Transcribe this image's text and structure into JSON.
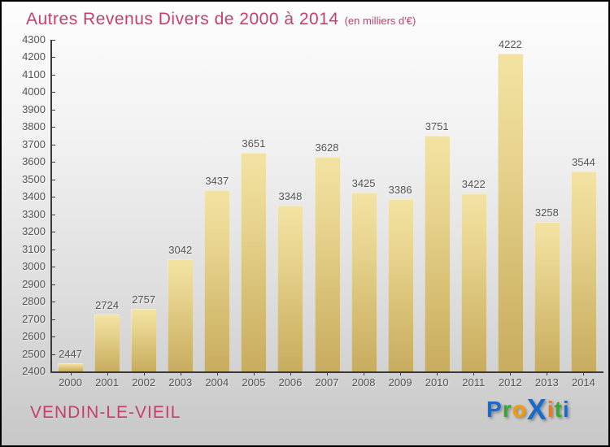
{
  "header": {
    "title": "Autres Revenus Divers de 2000 à 2014",
    "subtitle": "(en milliers d'€)"
  },
  "footer": {
    "city": "VENDIN-LE-VIEIL"
  },
  "logo": {
    "name": "Proxiti",
    "letters": [
      {
        "ch": "P",
        "color": "#1b6ac9"
      },
      {
        "ch": "r",
        "color": "#3aa535"
      },
      {
        "ch": "o",
        "color": "#f59c00"
      },
      {
        "ch": "X",
        "color": "#1b6ac9",
        "big": true
      },
      {
        "ch": "i",
        "color": "#f07818"
      },
      {
        "ch": "t",
        "color": "#3aa535"
      },
      {
        "ch": "i",
        "color": "#1b6ac9"
      }
    ]
  },
  "colors": {
    "accent_pink": "#c43e6e",
    "bar_gradient_top": "#f3e3a3",
    "bar_gradient_bottom": "#c8ac60",
    "label_gray": "#555555",
    "axis": "#3a3a3a"
  },
  "chart_data": {
    "type": "bar",
    "title": "Autres Revenus Divers de 2000 à 2014 (en milliers d'€)",
    "xlabel": "",
    "ylabel": "",
    "categories": [
      "2000",
      "2001",
      "2002",
      "2003",
      "2004",
      "2005",
      "2006",
      "2007",
      "2008",
      "2009",
      "2010",
      "2011",
      "2012",
      "2013",
      "2014"
    ],
    "values": [
      2447,
      2724,
      2757,
      3042,
      3437,
      3651,
      3348,
      3628,
      3425,
      3386,
      3751,
      3422,
      4222,
      3258,
      3544
    ],
    "ylim": [
      2400,
      4300
    ],
    "ytick_step": 100,
    "grid": false,
    "legend": false,
    "value_labels_shown": true
  }
}
